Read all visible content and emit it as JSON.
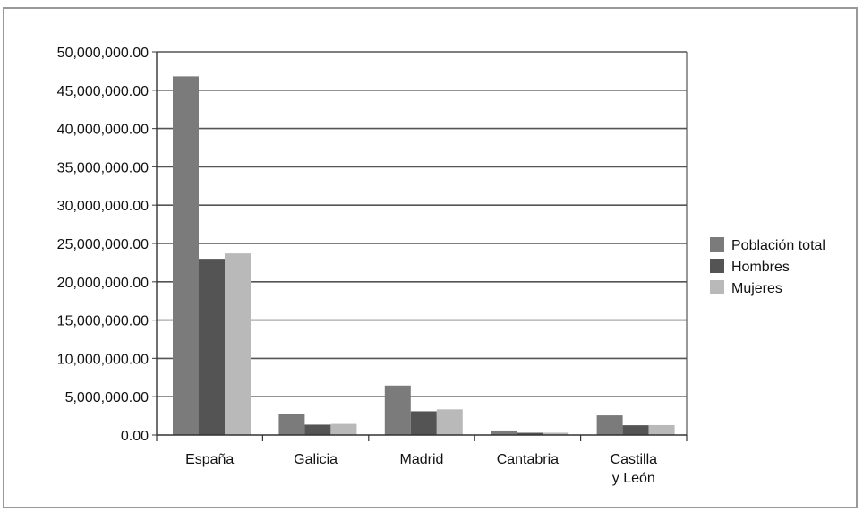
{
  "chart_data": {
    "type": "bar",
    "categories": [
      [
        "España"
      ],
      [
        "Galicia"
      ],
      [
        "Madrid"
      ],
      [
        "Cantabria"
      ],
      [
        "Castilla",
        "y León"
      ]
    ],
    "series": [
      {
        "name": "Población total",
        "color": "#7b7b7b",
        "values": [
          46800000,
          2800000,
          6450000,
          590000,
          2560000
        ]
      },
      {
        "name": "Hombres",
        "color": "#545454",
        "values": [
          23000000,
          1350000,
          3100000,
          290000,
          1270000
        ]
      },
      {
        "name": "Mujeres",
        "color": "#b9b9b9",
        "values": [
          23700000,
          1450000,
          3350000,
          300000,
          1290000
        ]
      }
    ],
    "y_ticks": [
      "0.00",
      "5,000,000.00",
      "10,000,000.00",
      "15,000,000.00",
      "20,000,000.00",
      "25,000,000.00",
      "30,000,000.00",
      "35,000,000.00",
      "40,000,000.00",
      "45,000,000.00",
      "50,000,000.00"
    ],
    "ylim": [
      0,
      50000000
    ],
    "grid": true,
    "legend_position": "right",
    "title": "",
    "xlabel": "",
    "ylabel": ""
  }
}
